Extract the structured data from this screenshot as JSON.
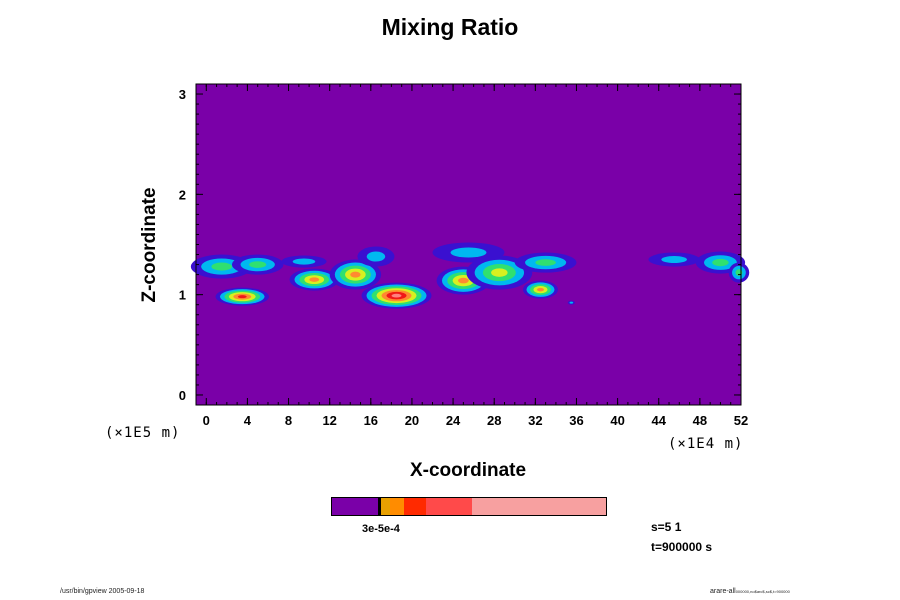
{
  "title": "Mixing Ratio",
  "axes": {
    "ylabel": "Z-coordinate",
    "xlabel": "X-coordinate",
    "yunit": "(×1E5 m)",
    "xunit": "(×1E4 m)",
    "yticks": [
      "0",
      "1",
      "2",
      "3"
    ],
    "xticks": [
      "0",
      "4",
      "8",
      "12",
      "16",
      "20",
      "24",
      "28",
      "32",
      "36",
      "40",
      "44",
      "48",
      "52"
    ]
  },
  "colorbar": {
    "label": "3e-5e-4",
    "colors": [
      "#7a00a8",
      "#e8a000",
      "#ff8c00",
      "#ff2a00",
      "#ff4a4a",
      "#f7a0a0"
    ]
  },
  "info": {
    "s": "s=5 1",
    "t": "t=900000 s"
  },
  "footer": {
    "left": "/usr/bin/gpview 2005-09-18",
    "right_main": "arare-all",
    "right_sub": "000000,no$arc$,sc$,t=900000"
  },
  "chart_data": {
    "type": "heatmap",
    "title": "Mixing Ratio",
    "xlabel": "X-coordinate",
    "ylabel": "Z-coordinate",
    "x_units": "×1E4 m",
    "y_units": "×1E5 m",
    "xlim": [
      -1,
      52
    ],
    "ylim": [
      -0.1,
      3.1
    ],
    "background": "#7a00a8",
    "levels": [
      "#7a00a8",
      "#3a10d0",
      "#00b8f0",
      "#30e070",
      "#d8f020",
      "#ff8a30",
      "#f01818",
      "#ff8080"
    ],
    "blobs": [
      {
        "x": 1.5,
        "z": 1.28,
        "rx": 3.0,
        "rz": 0.12,
        "peak": 3
      },
      {
        "x": 5.0,
        "z": 1.3,
        "rx": 2.5,
        "rz": 0.1,
        "peak": 3
      },
      {
        "x": 3.5,
        "z": 0.98,
        "rx": 2.6,
        "rz": 0.09,
        "peak": 6
      },
      {
        "x": 10.5,
        "z": 1.15,
        "rx": 2.4,
        "rz": 0.11,
        "peak": 5
      },
      {
        "x": 9.5,
        "z": 1.33,
        "rx": 2.2,
        "rz": 0.06,
        "peak": 2
      },
      {
        "x": 14.5,
        "z": 1.2,
        "rx": 2.5,
        "rz": 0.15,
        "peak": 5
      },
      {
        "x": 18.5,
        "z": 0.99,
        "rx": 3.4,
        "rz": 0.13,
        "peak": 7
      },
      {
        "x": 16.5,
        "z": 1.38,
        "rx": 1.8,
        "rz": 0.1,
        "peak": 2
      },
      {
        "x": 25.0,
        "z": 1.14,
        "rx": 2.6,
        "rz": 0.14,
        "peak": 5
      },
      {
        "x": 28.5,
        "z": 1.22,
        "rx": 3.2,
        "rz": 0.17,
        "peak": 4
      },
      {
        "x": 25.5,
        "z": 1.42,
        "rx": 3.5,
        "rz": 0.1,
        "peak": 2
      },
      {
        "x": 32.5,
        "z": 1.05,
        "rx": 1.7,
        "rz": 0.09,
        "peak": 5
      },
      {
        "x": 33.0,
        "z": 1.32,
        "rx": 3.0,
        "rz": 0.1,
        "peak": 3
      },
      {
        "x": 35.5,
        "z": 0.92,
        "rx": 0.35,
        "rz": 0.02,
        "peak": 2
      },
      {
        "x": 45.5,
        "z": 1.35,
        "rx": 2.5,
        "rz": 0.07,
        "peak": 2
      },
      {
        "x": 50.0,
        "z": 1.32,
        "rx": 2.4,
        "rz": 0.11,
        "peak": 3
      },
      {
        "x": 51.8,
        "z": 1.22,
        "rx": 1.0,
        "rz": 0.1,
        "peak": 3
      }
    ]
  }
}
